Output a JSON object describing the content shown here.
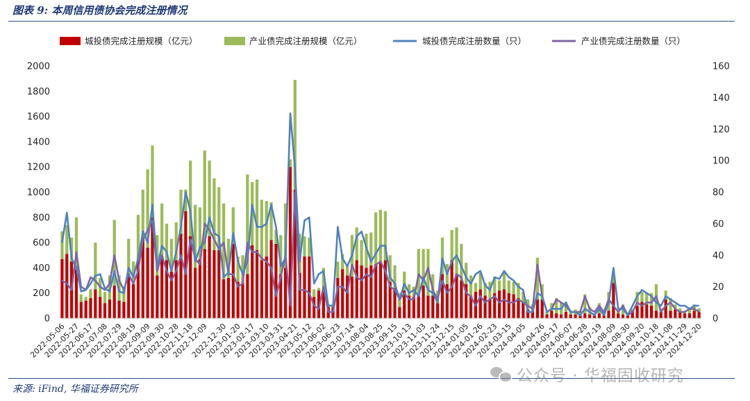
{
  "figure": {
    "title": "图表 9:  本周信用债协会完成注册情况",
    "source": "来源:  iFind, 华福证券研究所",
    "watermark": "公众号 · 华福固收研究"
  },
  "colors": {
    "bar_city": "#c00000",
    "bar_industry": "#9bbb59",
    "line_city": "#4f81bd",
    "line_industry": "#8064a2",
    "accent": "#1f3a78"
  },
  "chart_data": {
    "type": "bar",
    "combo": "stacked bars (left axis) + lines (right axis)",
    "legend_position": "top",
    "grid": false,
    "left_axis": {
      "ylim": [
        0,
        2000
      ],
      "ticks": [
        0,
        200,
        400,
        600,
        800,
        1000,
        1200,
        1400,
        1600,
        1800,
        2000
      ]
    },
    "right_axis": {
      "ylim": [
        0,
        160
      ],
      "ticks": [
        0,
        20,
        40,
        60,
        80,
        100,
        120,
        140,
        160
      ]
    },
    "x_ticks": [
      "2022-05-06",
      "2022-05-27",
      "2022-06-17",
      "2022-07-08",
      "2022-07-29",
      "2022-08-19",
      "2022-09-09",
      "2022-09-30",
      "2022-10-28",
      "2022-11-18",
      "2022-12-09",
      "2022-12-30",
      "2023-01-20",
      "2023-02-17",
      "2023-03-10",
      "2023-03-31",
      "2023-04-21",
      "2023-05-12",
      "2023-06-02",
      "2023-06-23",
      "2023-07-14",
      "2023-08-04",
      "2023-08-25",
      "2023-09-15",
      "2023-10-13",
      "2023-11-03",
      "2023-11-24",
      "2023-12-15",
      "2024-01-05",
      "2024-01-26",
      "2024-02-23",
      "2024-03-15",
      "2024-04-05",
      "2024-04-26",
      "2024-05-17",
      "2024-06-07",
      "2024-06-28",
      "2024-07-19",
      "2024-08-09",
      "2024-08-30",
      "2024-09-20",
      "2024-10-18",
      "2024-11-08",
      "2024-11-29",
      "2024-12-20"
    ],
    "series": [
      {
        "name": "城投债完成注册规模（亿元）",
        "kind": "bar",
        "axis": "left",
        "values": [
          470,
          510,
          450,
          390,
          130,
          140,
          160,
          230,
          170,
          120,
          150,
          260,
          140,
          130,
          350,
          270,
          460,
          640,
          560,
          800,
          340,
          490,
          460,
          370,
          460,
          670,
          850,
          650,
          400,
          470,
          550,
          650,
          540,
          540,
          310,
          320,
          590,
          290,
          280,
          350,
          580,
          540,
          460,
          490,
          620,
          590,
          350,
          400,
          1200,
          1020,
          360,
          490,
          490,
          170,
          220,
          230,
          90,
          90,
          320,
          390,
          340,
          330,
          460,
          420,
          400,
          420,
          430,
          450,
          460,
          290,
          240,
          90,
          220,
          180,
          170,
          180,
          260,
          180,
          180,
          120,
          350,
          270,
          460,
          350,
          300,
          270,
          180,
          210,
          230,
          180,
          150,
          200,
          220,
          230,
          200,
          190,
          160,
          130,
          70,
          60,
          150,
          150,
          30,
          60,
          40,
          30,
          50,
          30,
          30,
          20,
          40,
          30,
          20,
          40,
          20,
          60,
          280,
          40,
          30,
          20,
          60,
          100,
          130,
          110,
          100,
          60,
          50,
          150,
          60,
          70,
          50,
          40,
          40,
          60,
          50
        ]
      },
      {
        "name": "产业债完成注册规模（亿元）",
        "kind": "bar",
        "axis": "left",
        "values": [
          220,
          230,
          190,
          410,
          60,
          30,
          70,
          370,
          150,
          90,
          190,
          520,
          200,
          120,
          280,
          180,
          360,
          380,
          620,
          570,
          320,
          420,
          290,
          260,
          300,
          350,
          170,
          600,
          500,
          410,
          780,
          600,
          570,
          500,
          600,
          310,
          290,
          200,
          220,
          790,
          500,
          560,
          480,
          440,
          300,
          110,
          310,
          510,
          60,
          870,
          310,
          160,
          150,
          60,
          20,
          170,
          20,
          20,
          130,
          120,
          80,
          330,
          260,
          200,
          270,
          260,
          410,
          410,
          390,
          210,
          180,
          110,
          150,
          90,
          80,
          370,
          290,
          370,
          170,
          100,
          290,
          160,
          240,
          370,
          290,
          170,
          160,
          70,
          130,
          100,
          140,
          130,
          80,
          130,
          100,
          100,
          120,
          80,
          80,
          50,
          330,
          120,
          20,
          60,
          120,
          100,
          80,
          30,
          40,
          40,
          150,
          60,
          20,
          80,
          30,
          150,
          70,
          10,
          80,
          20,
          10,
          110,
          80,
          90,
          100,
          210,
          30,
          70,
          100,
          40,
          30,
          20,
          40,
          50,
          30
        ]
      },
      {
        "name": "城投债完成注册数量（只）",
        "kind": "line",
        "axis": "right",
        "values": [
          48,
          67,
          38,
          32,
          17,
          18,
          22,
          27,
          28,
          19,
          17,
          30,
          17,
          16,
          32,
          26,
          38,
          55,
          48,
          72,
          32,
          46,
          42,
          30,
          42,
          58,
          80,
          68,
          36,
          45,
          48,
          64,
          54,
          52,
          26,
          29,
          54,
          36,
          28,
          36,
          72,
          58,
          58,
          60,
          72,
          58,
          33,
          38,
          130,
          95,
          36,
          62,
          64,
          22,
          28,
          30,
          8,
          8,
          58,
          38,
          33,
          40,
          52,
          55,
          45,
          36,
          41,
          46,
          46,
          26,
          22,
          12,
          22,
          16,
          18,
          14,
          26,
          18,
          16,
          10,
          38,
          28,
          36,
          40,
          33,
          26,
          22,
          28,
          30,
          21,
          18,
          26,
          25,
          30,
          26,
          24,
          20,
          18,
          4,
          4,
          16,
          14,
          4,
          6,
          6,
          6,
          10,
          4,
          4,
          2,
          6,
          4,
          2,
          6,
          2,
          10,
          32,
          6,
          6,
          2,
          8,
          14,
          18,
          16,
          14,
          10,
          8,
          14,
          12,
          10,
          8,
          8,
          6,
          8,
          8
        ]
      },
      {
        "name": "产业债完成注册数量（只）",
        "kind": "line",
        "axis": "right",
        "values": [
          24,
          22,
          18,
          42,
          20,
          18,
          26,
          24,
          20,
          18,
          22,
          40,
          24,
          18,
          28,
          22,
          30,
          50,
          56,
          62,
          30,
          40,
          30,
          24,
          30,
          40,
          28,
          50,
          38,
          34,
          60,
          56,
          50,
          44,
          48,
          28,
          28,
          20,
          22,
          48,
          42,
          42,
          38,
          36,
          32,
          14,
          26,
          40,
          8,
          80,
          18,
          18,
          16,
          8,
          6,
          20,
          4,
          4,
          20,
          20,
          16,
          34,
          26,
          24,
          28,
          26,
          34,
          36,
          30,
          20,
          18,
          12,
          16,
          12,
          12,
          28,
          24,
          32,
          18,
          12,
          24,
          16,
          20,
          28,
          26,
          16,
          14,
          8,
          14,
          10,
          12,
          14,
          10,
          12,
          10,
          10,
          12,
          10,
          8,
          6,
          34,
          14,
          4,
          6,
          12,
          10,
          8,
          4,
          4,
          4,
          14,
          6,
          4,
          8,
          4,
          12,
          8,
          4,
          8,
          2,
          4,
          10,
          8,
          10,
          10,
          14,
          4,
          8,
          10,
          6,
          4,
          4,
          6,
          6,
          4
        ]
      }
    ]
  }
}
